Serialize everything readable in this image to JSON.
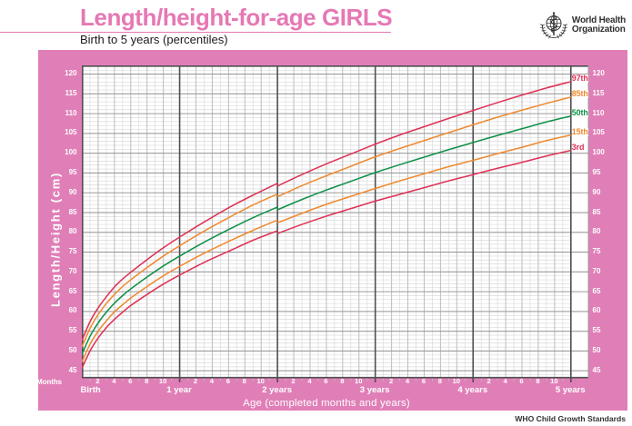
{
  "header": {
    "title": "Length/height-for-age GIRLS",
    "subtitle": "Birth to 5 years (percentiles)",
    "title_color": "#e678b4",
    "band_color": "#e07fb7"
  },
  "who_logo": {
    "line1": "World Health",
    "line2": "Organization"
  },
  "footer": {
    "text": "WHO Child Growth Standards"
  },
  "chart_data": {
    "type": "line",
    "title": "Length/height-for-age GIRLS",
    "subtitle": "Birth to 5 years (percentiles)",
    "xlabel": "Age (completed months and years)",
    "ylabel": "Length/Height (cm)",
    "x_row_label": "Months",
    "xlim_months": [
      0,
      60
    ],
    "ylim_cm": [
      43.1,
      122.2
    ],
    "y_major_step": 5,
    "y_minor_step": 1,
    "y_major_ticks": [
      45,
      50,
      55,
      60,
      65,
      70,
      75,
      80,
      85,
      90,
      95,
      100,
      105,
      110,
      115,
      120
    ],
    "x_month_labels": [
      "2",
      "4",
      "6",
      "8",
      "10"
    ],
    "x_year_ticks": [
      {
        "month": 0,
        "label": "Birth"
      },
      {
        "month": 12,
        "label": "1 year"
      },
      {
        "month": 24,
        "label": "2 years"
      },
      {
        "month": 36,
        "label": "3 years"
      },
      {
        "month": 48,
        "label": "4 years"
      },
      {
        "month": 60,
        "label": "5 years"
      }
    ],
    "legend_position": "right-of-curves",
    "grid": "on",
    "series": [
      {
        "name": "97th",
        "color": "#df3156",
        "segments": [
          {
            "x": [
              0,
              1,
              2,
              3,
              4,
              5,
              6,
              8,
              10,
              12,
              15,
              18,
              21,
              24
            ],
            "y": [
              52.6,
              57.4,
              60.9,
              63.7,
              66.2,
              68.2,
              69.9,
              73.1,
              76.1,
              78.8,
              82.6,
              86.2,
              89.4,
              92.4
            ]
          },
          {
            "x": [
              24,
              27,
              30,
              33,
              36,
              39,
              42,
              45,
              48,
              51,
              54,
              57,
              60
            ],
            "y": [
              91.7,
              94.6,
              97.3,
              99.8,
              102.3,
              104.6,
              106.7,
              108.8,
              110.8,
              112.8,
              114.7,
              116.5,
              118.1
            ]
          }
        ]
      },
      {
        "name": "85th",
        "color": "#ef8a30",
        "segments": [
          {
            "x": [
              0,
              1,
              2,
              3,
              4,
              5,
              6,
              8,
              10,
              12,
              15,
              18,
              21,
              24
            ],
            "y": [
              51.0,
              55.7,
              59.2,
              62.0,
              64.3,
              66.3,
              68.0,
              71.1,
              74.0,
              76.6,
              80.3,
              83.7,
              86.9,
              89.7
            ]
          },
          {
            "x": [
              24,
              27,
              30,
              33,
              36,
              39,
              42,
              45,
              48,
              51,
              54,
              57,
              60
            ],
            "y": [
              89.0,
              91.8,
              94.3,
              96.7,
              99.1,
              101.2,
              103.2,
              105.2,
              107.2,
              109.1,
              110.9,
              112.6,
              114.2
            ]
          }
        ]
      },
      {
        "name": "50th",
        "color": "#0f9148",
        "segments": [
          {
            "x": [
              0,
              1,
              2,
              3,
              4,
              5,
              6,
              8,
              10,
              12,
              15,
              18,
              21,
              24
            ],
            "y": [
              49.1,
              53.7,
              57.1,
              59.8,
              62.1,
              64.0,
              65.7,
              68.7,
              71.5,
              74.0,
              77.5,
              80.7,
              83.7,
              86.4
            ]
          },
          {
            "x": [
              24,
              27,
              30,
              33,
              36,
              39,
              42,
              45,
              48,
              51,
              54,
              57,
              60
            ],
            "y": [
              85.7,
              88.3,
              90.7,
              92.9,
              95.1,
              97.1,
              99.0,
              100.9,
              102.7,
              104.5,
              106.2,
              107.9,
              109.4
            ]
          }
        ]
      },
      {
        "name": "15th",
        "color": "#ef8a30",
        "segments": [
          {
            "x": [
              0,
              1,
              2,
              3,
              4,
              5,
              6,
              8,
              10,
              12,
              15,
              18,
              21,
              24
            ],
            "y": [
              47.2,
              51.7,
              55.0,
              57.6,
              59.9,
              61.7,
              63.4,
              66.3,
              69.0,
              71.4,
              74.7,
              77.7,
              80.5,
              83.1
            ]
          },
          {
            "x": [
              24,
              27,
              30,
              33,
              36,
              39,
              42,
              45,
              48,
              51,
              54,
              57,
              60
            ],
            "y": [
              82.4,
              84.8,
              87.1,
              89.1,
              91.1,
              93.0,
              94.8,
              96.6,
              98.2,
              99.9,
              101.5,
              103.2,
              104.6
            ]
          }
        ]
      },
      {
        "name": "3rd",
        "color": "#df3156",
        "segments": [
          {
            "x": [
              0,
              1,
              2,
              3,
              4,
              5,
              6,
              8,
              10,
              12,
              15,
              18,
              21,
              24
            ],
            "y": [
              45.6,
              50.0,
              53.3,
              55.9,
              58.0,
              59.8,
              61.5,
              64.3,
              66.9,
              69.2,
              72.4,
              75.2,
              78.0,
              80.4
            ]
          },
          {
            "x": [
              24,
              27,
              30,
              33,
              36,
              39,
              42,
              45,
              48,
              51,
              54,
              57,
              60
            ],
            "y": [
              79.7,
              82.0,
              84.1,
              86.0,
              87.9,
              89.6,
              91.3,
              93.0,
              94.6,
              96.2,
              97.7,
              99.3,
              100.7
            ]
          }
        ]
      }
    ]
  },
  "colors": {
    "curve_red": "#df3156",
    "curve_orange": "#ef8a30",
    "curve_green": "#0f9148",
    "grid_minor": "#dbdbdb",
    "grid_even_month": "#bdbdbd",
    "grid_major": "#9c9c9c",
    "grid_year": "#4f4f4f",
    "logo_text": "#2f2f2f"
  }
}
